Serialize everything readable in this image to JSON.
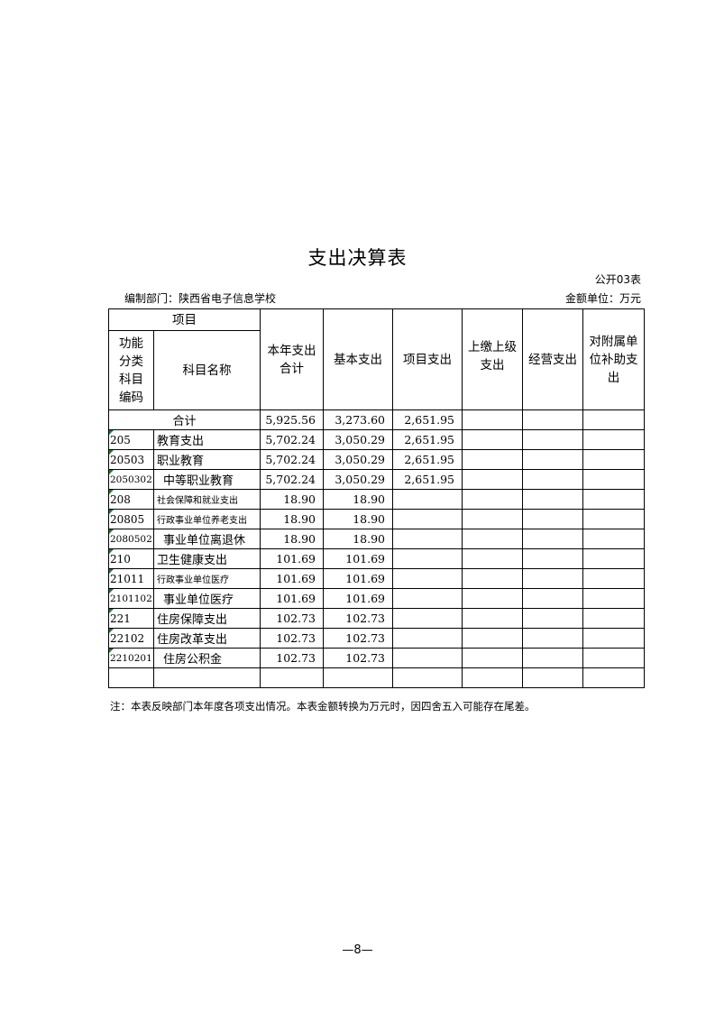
{
  "title": "支出决算表",
  "form_no": "公开03表",
  "dept": "编制部门：陕西省电子信息学校",
  "unit": "金额单位：万元",
  "headers": {
    "item": "项目",
    "code": "功能分类科目编码",
    "name": "科目名称",
    "total": "本年支出合计",
    "basic": "基本支出",
    "project": "项目支出",
    "upper": "上缴上级支出",
    "business": "经营支出",
    "subsidy": "对附属单位补助支出"
  },
  "total_row": {
    "label": "合计",
    "total": "5,925.56",
    "basic": "3,273.60",
    "project": "2,651.95"
  },
  "rows": [
    {
      "code": "205",
      "name": "教育支出",
      "total": "5,702.24",
      "basic": "3,050.29",
      "project": "2,651.95"
    },
    {
      "code": "20503",
      "name": "职业教育",
      "total": "5,702.24",
      "basic": "3,050.29",
      "project": "2,651.95"
    },
    {
      "code": "2050302",
      "name": "中等职业教育",
      "total": "5,702.24",
      "basic": "3,050.29",
      "project": "2,651.95"
    },
    {
      "code": "208",
      "name": "社会保障和就业支出",
      "total": "18.90",
      "basic": "18.90",
      "project": ""
    },
    {
      "code": "20805",
      "name": "行政事业单位养老支出",
      "total": "18.90",
      "basic": "18.90",
      "project": ""
    },
    {
      "code": "2080502",
      "name": "事业单位离退休",
      "total": "18.90",
      "basic": "18.90",
      "project": ""
    },
    {
      "code": "210",
      "name": "卫生健康支出",
      "total": "101.69",
      "basic": "101.69",
      "project": ""
    },
    {
      "code": "21011",
      "name": "行政事业单位医疗",
      "total": "101.69",
      "basic": "101.69",
      "project": ""
    },
    {
      "code": "2101102",
      "name": "事业单位医疗",
      "total": "101.69",
      "basic": "101.69",
      "project": ""
    },
    {
      "code": "221",
      "name": "住房保障支出",
      "total": "102.73",
      "basic": "102.73",
      "project": ""
    },
    {
      "code": "22102",
      "name": "住房改革支出",
      "total": "102.73",
      "basic": "102.73",
      "project": ""
    },
    {
      "code": "2210201",
      "name": "住房公积金",
      "total": "102.73",
      "basic": "102.73",
      "project": ""
    }
  ],
  "note": "注：本表反映部门本年度各项支出情况。本表金额转换为万元时，因四舍五入可能存在尾差。",
  "page_number": "—8—"
}
